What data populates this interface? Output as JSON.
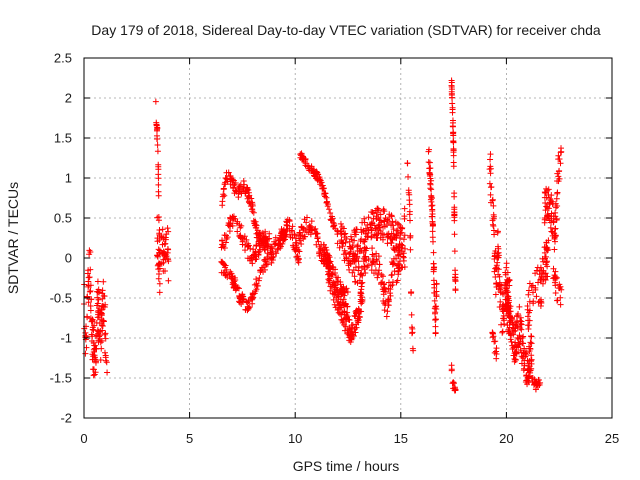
{
  "chart_data": {
    "type": "scatter",
    "title": "Day 179 of 2018, Sidereal Day-to-day VTEC variation (SDTVAR) for receiver chda",
    "xlabel": "GPS time / hours",
    "ylabel": "SDTVAR / TECUs",
    "xlim": [
      0,
      25
    ],
    "ylim": [
      -2,
      2.5
    ],
    "xticks": [
      "0",
      "5",
      "10",
      "15",
      "20",
      "25"
    ],
    "yticks": [
      "2.5",
      "2",
      "1.5",
      "1",
      "0.5",
      "0",
      "-0.5",
      "-1",
      "-1.5",
      "-2"
    ],
    "marker": "+",
    "color": "#ff0000",
    "grid": true,
    "series": [
      {
        "name": "SDTVAR",
        "segments": [
          {
            "x0": 0.0,
            "x1": 1.1,
            "trace": [
              [
                0.0,
                -0.6
              ],
              [
                0.1,
                -1.0
              ],
              [
                0.2,
                -0.3
              ],
              [
                0.3,
                -0.1
              ],
              [
                0.35,
                -0.9
              ],
              [
                0.45,
                -1.2
              ],
              [
                0.55,
                -1.1
              ],
              [
                0.65,
                -0.6
              ],
              [
                0.8,
                -1.0
              ],
              [
                0.9,
                -0.5
              ],
              [
                1.0,
                -0.9
              ],
              [
                1.05,
                -1.3
              ]
            ],
            "spread": 0.35,
            "count": 140
          },
          {
            "x0": 3.4,
            "x1": 3.6,
            "trace": [
              [
                3.4,
                1.9
              ],
              [
                3.45,
                1.6
              ],
              [
                3.5,
                1.4
              ],
              [
                3.55,
                0.5
              ],
              [
                3.6,
                0.0
              ]
            ],
            "spread": 0.1,
            "count": 28
          },
          {
            "x0": 3.45,
            "x1": 4.0,
            "trace": [
              [
                3.45,
                0.3
              ],
              [
                3.6,
                -0.2
              ],
              [
                3.7,
                0.2
              ],
              [
                3.8,
                -0.1
              ],
              [
                3.9,
                0.3
              ],
              [
                4.0,
                0.0
              ]
            ],
            "spread": 0.3,
            "count": 55
          },
          {
            "x0": 6.5,
            "x1": 8.8,
            "trace": [
              [
                6.5,
                0.5
              ],
              [
                6.7,
                1.0
              ],
              [
                6.9,
                1.0
              ],
              [
                7.1,
                0.9
              ],
              [
                7.3,
                0.8
              ],
              [
                7.5,
                0.9
              ],
              [
                7.7,
                0.85
              ],
              [
                7.9,
                0.7
              ],
              [
                8.2,
                0.3
              ],
              [
                8.5,
                0.2
              ],
              [
                8.8,
                0.1
              ]
            ],
            "spread": 0.08,
            "count": 120
          },
          {
            "x0": 6.5,
            "x1": 8.8,
            "trace": [
              [
                6.5,
                0.1
              ],
              [
                6.8,
                0.3
              ],
              [
                7.0,
                0.5
              ],
              [
                7.3,
                0.4
              ],
              [
                7.6,
                0.2
              ],
              [
                7.9,
                0.0
              ],
              [
                8.2,
                0.1
              ],
              [
                8.5,
                0.25
              ],
              [
                8.8,
                0.2
              ]
            ],
            "spread": 0.1,
            "count": 110
          },
          {
            "x0": 6.5,
            "x1": 8.8,
            "trace": [
              [
                6.5,
                -0.1
              ],
              [
                6.8,
                -0.2
              ],
              [
                7.1,
                -0.3
              ],
              [
                7.4,
                -0.5
              ],
              [
                7.7,
                -0.6
              ],
              [
                7.9,
                -0.55
              ],
              [
                8.2,
                -0.3
              ],
              [
                8.5,
                -0.1
              ],
              [
                8.8,
                0.0
              ]
            ],
            "spread": 0.08,
            "count": 110
          },
          {
            "x0": 8.8,
            "x1": 10.2,
            "trace": [
              [
                8.8,
                0.0
              ],
              [
                9.1,
                0.15
              ],
              [
                9.4,
                0.3
              ],
              [
                9.7,
                0.4
              ],
              [
                10.0,
                0.2
              ],
              [
                10.2,
                0.0
              ]
            ],
            "spread": 0.12,
            "count": 100
          },
          {
            "x0": 10.2,
            "x1": 12.0,
            "trace": [
              [
                10.2,
                1.3
              ],
              [
                10.5,
                1.2
              ],
              [
                10.8,
                1.1
              ],
              [
                11.1,
                1.0
              ],
              [
                11.4,
                0.8
              ],
              [
                11.7,
                0.5
              ],
              [
                12.0,
                0.3
              ]
            ],
            "spread": 0.05,
            "count": 90
          },
          {
            "x0": 10.0,
            "x1": 12.5,
            "trace": [
              [
                10.0,
                0.0
              ],
              [
                10.3,
                0.3
              ],
              [
                10.6,
                0.45
              ],
              [
                10.9,
                0.3
              ],
              [
                11.2,
                0.1
              ],
              [
                11.5,
                0.0
              ],
              [
                11.8,
                -0.2
              ],
              [
                12.1,
                -0.4
              ],
              [
                12.5,
                -0.5
              ]
            ],
            "spread": 0.12,
            "count": 150
          },
          {
            "x0": 11.5,
            "x1": 13.2,
            "trace": [
              [
                11.5,
                -0.1
              ],
              [
                11.8,
                -0.4
              ],
              [
                12.1,
                -0.6
              ],
              [
                12.4,
                -0.8
              ],
              [
                12.7,
                -0.95
              ],
              [
                13.0,
                -0.7
              ],
              [
                13.2,
                -0.4
              ]
            ],
            "spread": 0.15,
            "count": 140
          },
          {
            "x0": 12.0,
            "x1": 15.2,
            "trace": [
              [
                12.0,
                0.3
              ],
              [
                12.5,
                0.1
              ],
              [
                13.0,
                0.2
              ],
              [
                13.5,
                0.4
              ],
              [
                14.0,
                0.45
              ],
              [
                14.5,
                0.35
              ],
              [
                15.0,
                0.2
              ],
              [
                15.2,
                0.5
              ]
            ],
            "spread": 0.2,
            "count": 200
          },
          {
            "x0": 12.5,
            "x1": 15.2,
            "trace": [
              [
                12.5,
                0.0
              ],
              [
                13.0,
                -0.2
              ],
              [
                13.5,
                0.0
              ],
              [
                14.0,
                -0.1
              ],
              [
                14.3,
                -0.6
              ],
              [
                14.6,
                -0.2
              ],
              [
                15.0,
                -0.1
              ],
              [
                15.2,
                0.0
              ]
            ],
            "spread": 0.18,
            "count": 140
          },
          {
            "x0": 15.3,
            "x1": 15.6,
            "trace": [
              [
                15.3,
                1.2
              ],
              [
                15.4,
                0.8
              ],
              [
                15.45,
                0.3
              ],
              [
                15.5,
                -0.7
              ],
              [
                15.55,
                -1.0
              ],
              [
                15.6,
                -1.2
              ]
            ],
            "spread": 0.1,
            "count": 25
          },
          {
            "x0": 16.3,
            "x1": 16.7,
            "trace": [
              [
                16.3,
                1.4
              ],
              [
                16.4,
                1.0
              ],
              [
                16.5,
                0.5
              ],
              [
                16.55,
                0.0
              ],
              [
                16.6,
                -0.5
              ],
              [
                16.65,
                -0.9
              ],
              [
                16.7,
                -0.4
              ]
            ],
            "spread": 0.15,
            "count": 70
          },
          {
            "x0": 17.4,
            "x1": 17.6,
            "trace": [
              [
                17.4,
                2.2
              ],
              [
                17.45,
                1.9
              ],
              [
                17.5,
                1.3
              ],
              [
                17.52,
                0.8
              ],
              [
                17.55,
                0.3
              ],
              [
                17.57,
                -0.2
              ],
              [
                17.6,
                -0.4
              ]
            ],
            "spread": 0.1,
            "count": 55
          },
          {
            "x0": 17.4,
            "x1": 17.6,
            "trace": [
              [
                17.4,
                -1.4
              ],
              [
                17.5,
                -1.6
              ],
              [
                17.6,
                -1.7
              ]
            ],
            "spread": 0.08,
            "count": 14
          },
          {
            "x0": 19.2,
            "x1": 20.2,
            "trace": [
              [
                19.2,
                1.2
              ],
              [
                19.3,
                0.8
              ],
              [
                19.4,
                0.3
              ],
              [
                19.5,
                -0.3
              ],
              [
                19.6,
                0.1
              ],
              [
                19.7,
                -0.4
              ],
              [
                19.8,
                -0.8
              ],
              [
                20.0,
                -0.3
              ],
              [
                20.2,
                -0.6
              ]
            ],
            "spread": 0.3,
            "count": 120
          },
          {
            "x0": 19.3,
            "x1": 19.6,
            "trace": [
              [
                19.3,
                -0.9
              ],
              [
                19.45,
                -1.1
              ],
              [
                19.6,
                -1.3
              ]
            ],
            "spread": 0.1,
            "count": 14
          },
          {
            "x0": 20.0,
            "x1": 21.2,
            "trace": [
              [
                20.0,
                -0.5
              ],
              [
                20.2,
                -0.9
              ],
              [
                20.4,
                -1.1
              ],
              [
                20.6,
                -0.8
              ],
              [
                20.8,
                -1.2
              ],
              [
                21.0,
                -1.4
              ],
              [
                21.2,
                -1.1
              ]
            ],
            "spread": 0.25,
            "count": 150
          },
          {
            "x0": 21.2,
            "x1": 21.6,
            "trace": [
              [
                21.2,
                -1.5
              ],
              [
                21.4,
                -1.6
              ],
              [
                21.6,
                -1.55
              ]
            ],
            "spread": 0.05,
            "count": 22
          },
          {
            "x0": 21.0,
            "x1": 22.0,
            "trace": [
              [
                21.0,
                -0.7
              ],
              [
                21.3,
                -0.3
              ],
              [
                21.6,
                -0.4
              ],
              [
                21.8,
                -0.1
              ],
              [
                22.0,
                0.0
              ]
            ],
            "spread": 0.25,
            "count": 70
          },
          {
            "x0": 21.8,
            "x1": 22.6,
            "trace": [
              [
                21.8,
                0.6
              ],
              [
                22.0,
                0.7
              ],
              [
                22.2,
                0.5
              ],
              [
                22.3,
                0.3
              ],
              [
                22.4,
                0.8
              ],
              [
                22.5,
                1.2
              ],
              [
                22.6,
                1.35
              ]
            ],
            "spread": 0.25,
            "count": 80
          },
          {
            "x0": 22.2,
            "x1": 22.6,
            "trace": [
              [
                22.2,
                -0.2
              ],
              [
                22.4,
                -0.4
              ],
              [
                22.6,
                -0.5
              ]
            ],
            "spread": 0.15,
            "count": 20
          }
        ]
      }
    ]
  }
}
